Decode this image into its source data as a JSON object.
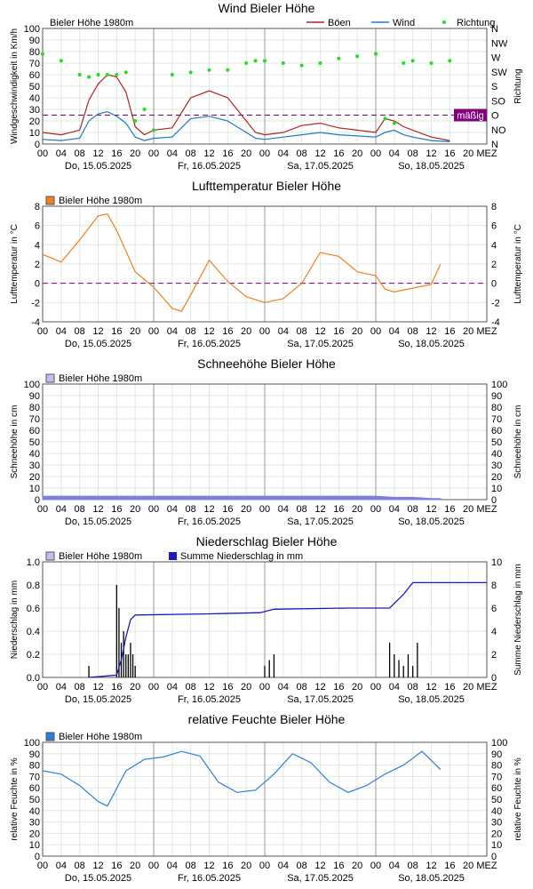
{
  "days": [
    "Do, 15.05.2025",
    "Fr, 16.05.2025",
    "Sa, 17.05.2025",
    "So, 18.05.2025"
  ],
  "hour_ticks": [
    "00",
    "04",
    "08",
    "12",
    "16",
    "20",
    "00",
    "04",
    "08",
    "12",
    "16",
    "20",
    "00",
    "04",
    "08",
    "12",
    "16",
    "20",
    "00",
    "04",
    "08",
    "12",
    "16",
    "20",
    "MEZ"
  ],
  "chart_data": [
    {
      "type": "line",
      "title": "Wind    Bieler Höhe",
      "station": "Bieler Höhe   1980m",
      "ylabel": "Windgeschwindigkeit in Km/h",
      "ylabel_right": "Richtung",
      "ylim": [
        0,
        100
      ],
      "yticks": [
        "0",
        "10",
        "20",
        "30",
        "40",
        "50",
        "60",
        "70",
        "80",
        "90",
        "100"
      ],
      "direction_ticks": [
        "N",
        "NW",
        "W",
        "SW",
        "S",
        "SO",
        "O",
        "NO",
        "N"
      ],
      "reference_label": "mäßig",
      "reference_value": 25,
      "x_hours": [
        0,
        4,
        8,
        10,
        12,
        14,
        16,
        18,
        20,
        22,
        24,
        28,
        32,
        36,
        40,
        44,
        46,
        48,
        52,
        56,
        60,
        64,
        68,
        72,
        74,
        76,
        78,
        80,
        84,
        88,
        96
      ],
      "series": [
        {
          "name": "Böen",
          "color": "#b22222",
          "values": [
            10,
            8,
            12,
            38,
            52,
            60,
            58,
            45,
            15,
            8,
            12,
            14,
            40,
            46,
            40,
            20,
            10,
            8,
            10,
            16,
            18,
            14,
            12,
            10,
            22,
            20,
            15,
            12,
            6,
            3,
            null
          ]
        },
        {
          "name": "Wind",
          "color": "#1e78c8",
          "values": [
            4,
            3,
            5,
            20,
            26,
            28,
            24,
            18,
            6,
            3,
            5,
            6,
            22,
            24,
            20,
            10,
            5,
            4,
            6,
            8,
            10,
            8,
            7,
            6,
            10,
            12,
            8,
            6,
            3,
            2,
            null
          ]
        },
        {
          "name": "Richtung",
          "color": "#22dd22",
          "values": [
            0.78,
            0.72,
            0.6,
            0.58,
            0.6,
            0.6,
            0.6,
            0.62,
            0.2,
            0.3,
            0.12,
            0.6,
            0.62,
            0.64,
            0.64,
            0.7,
            0.72,
            0.72,
            0.7,
            0.68,
            0.7,
            0.74,
            0.76,
            0.78,
            0.22,
            0.18,
            0.7,
            0.72,
            0.7,
            0.72,
            null
          ]
        }
      ]
    },
    {
      "type": "line",
      "title": "Lufttemperatur    Bieler Höhe",
      "station": "Bieler Höhe   1980m",
      "ylabel": "Lufttemperatur in °C",
      "ylim": [
        -4,
        8
      ],
      "yticks": [
        "-4",
        "-2",
        "0",
        "2",
        "4",
        "6",
        "8"
      ],
      "reference_value": 0,
      "x_hours": [
        0,
        4,
        8,
        12,
        14,
        16,
        20,
        24,
        28,
        30,
        32,
        36,
        40,
        44,
        48,
        52,
        56,
        60,
        64,
        68,
        72,
        74,
        76,
        80,
        84,
        86
      ],
      "series": [
        {
          "name": "Bieler Höhe   1980m",
          "color": "#f08020",
          "values": [
            3,
            2.2,
            4.5,
            7,
            7.2,
            5.5,
            1.2,
            -0.4,
            -2.6,
            -2.9,
            -1.2,
            2.4,
            0.2,
            -1.4,
            -2.0,
            -1.6,
            0.0,
            3.2,
            2.8,
            1.2,
            0.8,
            -0.6,
            -0.9,
            -0.5,
            -0.1,
            2.0
          ]
        }
      ]
    },
    {
      "type": "area",
      "title": "Schneehöhe    Bieler Höhe",
      "station": "Bieler Höhe   1980m",
      "ylabel": "Schneehöhe in cm",
      "ylim": [
        0,
        100
      ],
      "yticks": [
        "0",
        "10",
        "20",
        "30",
        "40",
        "50",
        "60",
        "70",
        "80",
        "90",
        "100"
      ],
      "x_hours": [
        0,
        12,
        24,
        36,
        48,
        60,
        72,
        76,
        80,
        84,
        86
      ],
      "series": [
        {
          "name": "Bieler Höhe   1980m",
          "color": "#8080e0",
          "values": [
            3,
            3,
            3,
            3,
            3,
            3,
            3,
            2,
            2,
            1,
            1
          ]
        }
      ]
    },
    {
      "type": "bar",
      "title": "Niederschlag    Bieler Höhe",
      "station": "Bieler Höhe   1980m",
      "legend2": "Summe Niederschlag in mm",
      "ylabel": "Niederschlag in mm",
      "ylabel_right": "Summe Niederschlag in mm",
      "ylim": [
        0,
        1.0
      ],
      "yticks": [
        "0.0",
        "0.2",
        "0.4",
        "0.6",
        "0.8",
        "1.0"
      ],
      "yticks_right": [
        "0",
        "2",
        "4",
        "6",
        "8",
        "10"
      ],
      "bars_x_hours": [
        10,
        16,
        16.5,
        17,
        17.5,
        18,
        18.5,
        19,
        19.5,
        20,
        48,
        49,
        50,
        75,
        76,
        77,
        78,
        79,
        80,
        81
      ],
      "bars_values": [
        0.1,
        0.8,
        0.6,
        0.3,
        0.4,
        0.2,
        0.2,
        0.3,
        0.2,
        0.1,
        0.1,
        0.15,
        0.2,
        0.3,
        0.2,
        0.15,
        0.1,
        0.2,
        0.1,
        0.3
      ],
      "sum_x_hours": [
        10,
        16,
        17,
        18,
        19,
        20,
        36,
        47,
        50,
        66,
        75,
        78,
        80,
        96
      ],
      "sum_values": [
        0,
        0.2,
        1.5,
        3.5,
        5.0,
        5.4,
        5.5,
        5.6,
        5.9,
        6.0,
        6.0,
        7.2,
        8.2,
        8.2
      ],
      "series": [
        {
          "name": "Bieler Höhe   1980m",
          "color": "#000000"
        },
        {
          "name": "Summe Niederschlag in mm",
          "color": "#1a1ac0"
        }
      ]
    },
    {
      "type": "line",
      "title": "relative Feuchte    Bieler Höhe",
      "station": "Bieler Höhe   1980m",
      "ylabel": "relative Feuchte in %",
      "ylim": [
        0,
        100
      ],
      "yticks": [
        "0",
        "10",
        "20",
        "30",
        "40",
        "50",
        "60",
        "70",
        "80",
        "90",
        "100"
      ],
      "x_hours": [
        0,
        4,
        8,
        12,
        14,
        18,
        22,
        26,
        30,
        34,
        38,
        42,
        46,
        50,
        54,
        58,
        62,
        66,
        70,
        74,
        78,
        82,
        86
      ],
      "series": [
        {
          "name": "Bieler Höhe   1980m",
          "color": "#2c7fd8",
          "values": [
            75,
            72,
            62,
            48,
            44,
            75,
            85,
            87,
            92,
            88,
            65,
            56,
            58,
            72,
            90,
            82,
            65,
            56,
            62,
            72,
            80,
            92,
            76
          ]
        }
      ]
    }
  ]
}
